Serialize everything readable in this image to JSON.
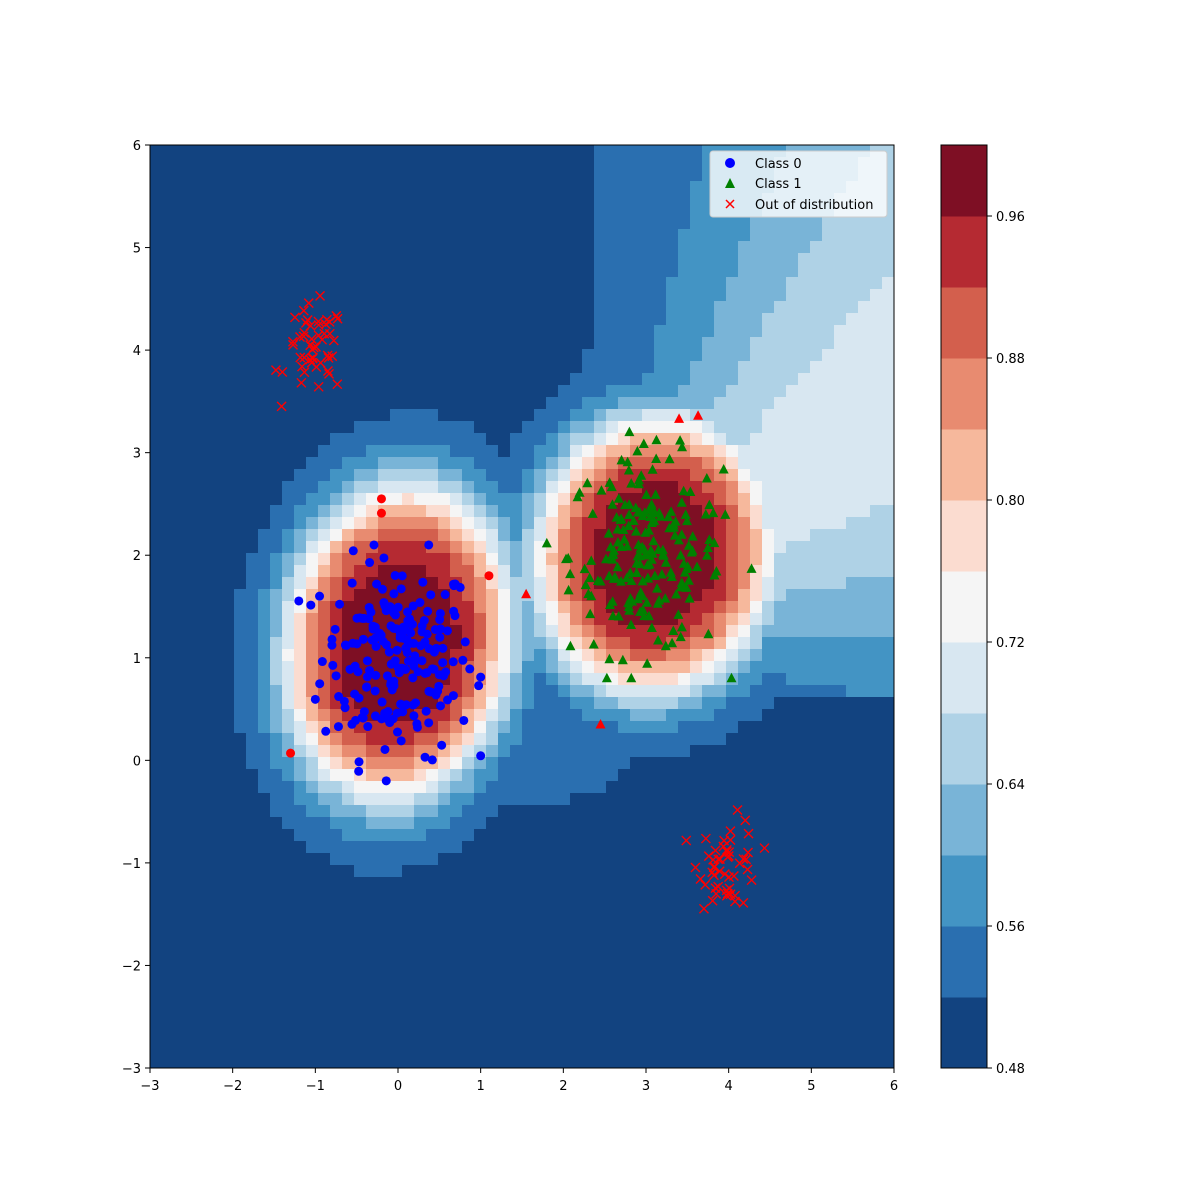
{
  "chart_data": {
    "type": "scatter",
    "title": "",
    "xlabel": "",
    "ylabel": "",
    "xlim": [
      -3,
      6
    ],
    "ylim": [
      -3,
      6
    ],
    "x_ticks": [
      -3,
      -2,
      -1,
      0,
      1,
      2,
      3,
      4,
      5,
      6
    ],
    "y_ticks": [
      -3,
      -2,
      -1,
      0,
      1,
      2,
      3,
      4,
      5,
      6
    ],
    "x_tick_labels": [
      "−3",
      "−2",
      "−1",
      "0",
      "1",
      "2",
      "3",
      "4",
      "5",
      "6"
    ],
    "y_tick_labels": [
      "−3",
      "−2",
      "−1",
      "0",
      "1",
      "2",
      "3",
      "4",
      "5",
      "6"
    ],
    "background": {
      "type": "filled-contour",
      "colormap": "RdBu_r",
      "levels": [
        0.48,
        0.5,
        0.52,
        0.54,
        0.56,
        0.58,
        0.6,
        0.62,
        0.64,
        0.66,
        0.68,
        0.7,
        0.72,
        0.74,
        0.76,
        0.78,
        0.8,
        0.82,
        0.84,
        0.86,
        0.88,
        0.9,
        0.92,
        0.94,
        0.96,
        0.98,
        1.0
      ],
      "level_colors": [
        "#124380",
        "#2a6fb0",
        "#4394c4",
        "#79b4d7",
        "#afd2e6",
        "#d8e7f1",
        "#f5f5f5",
        "#fbdcd0",
        "#f6b89c",
        "#e88b70",
        "#d35f4d",
        "#b52a32",
        "#7e0f24"
      ]
    },
    "colorbar": {
      "range": [
        0.48,
        1.0
      ],
      "tick_values": [
        0.48,
        0.56,
        0.64,
        0.72,
        0.8,
        0.88,
        0.96
      ],
      "tick_labels": [
        "0.48",
        "0.56",
        "0.64",
        "0.72",
        "0.80",
        "0.88",
        "0.96"
      ]
    },
    "legend": {
      "position": "upper right",
      "entries": [
        {
          "label": "Class 0",
          "marker": "circle",
          "color": "#0000ff"
        },
        {
          "label": "Class 1",
          "marker": "triangle",
          "color": "#008000"
        },
        {
          "label": "Out of distribution",
          "marker": "x",
          "color": "#ff0000"
        }
      ]
    },
    "series": [
      {
        "name": "Class 0",
        "marker": "circle",
        "color": "#0000ff",
        "n_points": 200,
        "center": [
          0.0,
          1.0
        ],
        "spread": 0.4,
        "range_x": [
          -1.2,
          1.0
        ],
        "range_y": [
          -0.2,
          2.1
        ]
      },
      {
        "name": "Class 1",
        "marker": "triangle",
        "color": "#008000",
        "n_points": 200,
        "center": [
          3.0,
          2.0
        ],
        "spread": 0.4,
        "range_x": [
          1.8,
          4.3
        ],
        "range_y": [
          0.8,
          3.2
        ]
      },
      {
        "name": "Out of distribution",
        "marker": "x",
        "color": "#ff0000",
        "clusters": [
          {
            "center": [
              -1.0,
              4.0
            ],
            "n_points": 50,
            "spread": 0.18
          },
          {
            "center": [
              4.0,
              -1.0
            ],
            "n_points": 50,
            "spread": 0.18
          }
        ]
      }
    ],
    "misclassified": [
      {
        "marker": "circle",
        "color": "#ff0000",
        "points": [
          [
            -0.2,
            2.55
          ],
          [
            -0.2,
            2.41
          ],
          [
            1.1,
            1.8
          ],
          [
            -1.3,
            0.07
          ]
        ]
      },
      {
        "marker": "triangle",
        "color": "#ff0000",
        "points": [
          [
            3.4,
            3.33
          ],
          [
            3.63,
            3.36
          ],
          [
            1.55,
            1.62
          ],
          [
            2.45,
            0.35
          ]
        ]
      }
    ]
  }
}
